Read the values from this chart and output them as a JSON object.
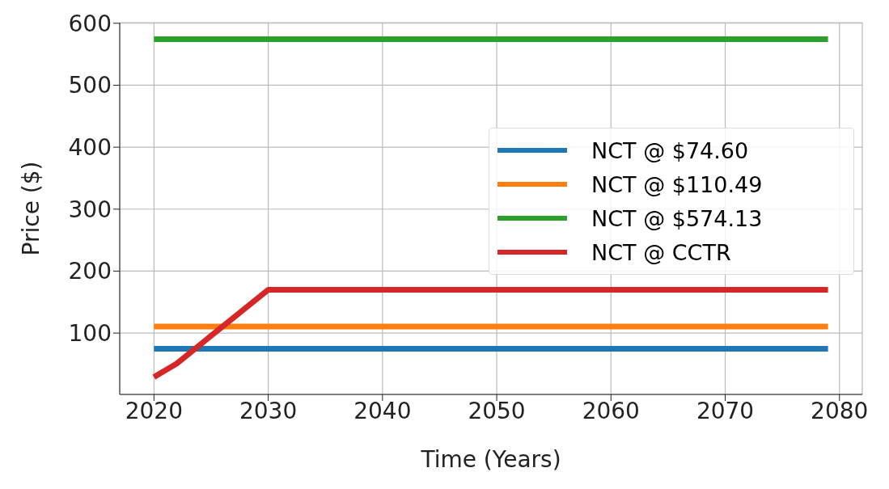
{
  "chart_data": {
    "type": "line",
    "xlabel": "Time (Years)",
    "ylabel": "Price ($)",
    "xlim": [
      2017,
      2082
    ],
    "xticks": [
      2020,
      2030,
      2040,
      2050,
      2060,
      2070,
      2080
    ],
    "ylim": [
      1,
      601
    ],
    "yticks": [
      100,
      200,
      300,
      400,
      500,
      600
    ],
    "grid": true,
    "legend": "right",
    "line_style": "solid",
    "marker": "none",
    "series": [
      {
        "name": "NCT @ $74.60",
        "color": "#1f77b4",
        "x": [
          2020,
          2079
        ],
        "values": [
          74.6,
          74.6
        ]
      },
      {
        "name": "NCT @ $110.49",
        "color": "#ff7f0e",
        "x": [
          2020,
          2079
        ],
        "values": [
          110.49,
          110.49
        ]
      },
      {
        "name": "NCT @ $574.13",
        "color": "#2ca02c",
        "x": [
          2020,
          2079
        ],
        "values": [
          574.13,
          574.13
        ]
      },
      {
        "name": "NCT @ CCTR",
        "color": "#d62728",
        "x": [
          2020,
          2022,
          2030,
          2079
        ],
        "values": [
          29,
          51,
          170,
          170
        ]
      }
    ]
  }
}
